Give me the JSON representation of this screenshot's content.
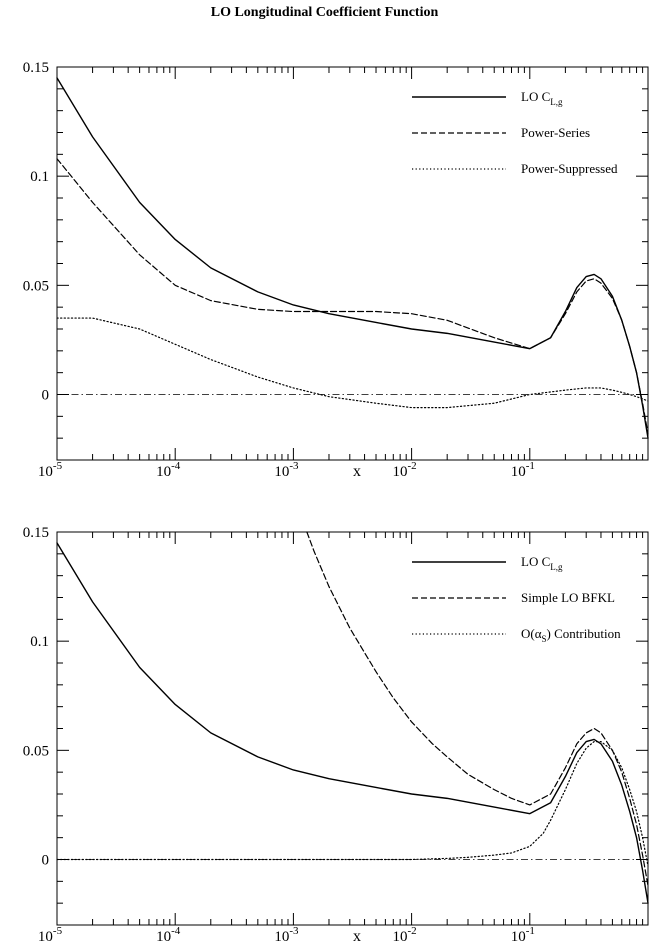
{
  "page": {
    "title": "LO Longitudinal Coefficient Function"
  },
  "chart_data": [
    {
      "type": "line",
      "title": "",
      "xlabel": "x",
      "ylabel": "",
      "x_scale": "log",
      "xlim": [
        1e-05,
        1
      ],
      "ylim": [
        -0.03,
        0.15
      ],
      "x_ticks": [
        {
          "value": 1e-05,
          "base": "10",
          "exp": "-5"
        },
        {
          "value": 0.0001,
          "base": "10",
          "exp": "-4"
        },
        {
          "value": 0.001,
          "base": "10",
          "exp": "-3"
        },
        {
          "value": 0.01,
          "base": "10",
          "exp": "-2"
        },
        {
          "value": 0.1,
          "base": "10",
          "exp": "-1"
        }
      ],
      "y_ticks": [
        {
          "value": 0.15,
          "label": "0.15"
        },
        {
          "value": 0.1,
          "label": "0.1"
        },
        {
          "value": 0.05,
          "label": "0.05"
        },
        {
          "value": 0,
          "label": "0"
        }
      ],
      "legend_position": "top-right",
      "zero_line": {
        "y": 0,
        "style": "dashdot"
      },
      "series": [
        {
          "name": "LO C_L,g",
          "legend_text": "LO C",
          "legend_sub": "L,g",
          "style": "solid",
          "x": [
            1e-05,
            2e-05,
            5e-05,
            0.0001,
            0.0002,
            0.0005,
            0.001,
            0.002,
            0.005,
            0.01,
            0.02,
            0.05,
            0.1,
            0.15,
            0.2,
            0.25,
            0.3,
            0.35,
            0.4,
            0.5,
            0.6,
            0.7,
            0.8,
            0.9,
            1.0
          ],
          "y": [
            0.145,
            0.118,
            0.088,
            0.071,
            0.058,
            0.047,
            0.041,
            0.037,
            0.033,
            0.03,
            0.028,
            0.024,
            0.021,
            0.026,
            0.038,
            0.049,
            0.054,
            0.055,
            0.053,
            0.045,
            0.034,
            0.022,
            0.01,
            -0.005,
            -0.02
          ]
        },
        {
          "name": "Power-Series",
          "legend_text": "Power-Series",
          "style": "dashed",
          "x": [
            1e-05,
            2e-05,
            5e-05,
            0.0001,
            0.0002,
            0.0005,
            0.001,
            0.002,
            0.005,
            0.01,
            0.02,
            0.05,
            0.1,
            0.15,
            0.2,
            0.25,
            0.3,
            0.35,
            0.4,
            0.5,
            0.6,
            0.7,
            0.8,
            0.9,
            1.0
          ],
          "y": [
            0.108,
            0.088,
            0.064,
            0.05,
            0.043,
            0.039,
            0.038,
            0.038,
            0.038,
            0.037,
            0.034,
            0.026,
            0.021,
            0.026,
            0.037,
            0.047,
            0.052,
            0.053,
            0.051,
            0.044,
            0.034,
            0.022,
            0.01,
            -0.004,
            -0.018
          ]
        },
        {
          "name": "Power-Suppressed",
          "legend_text": "Power-Suppressed",
          "style": "dotted",
          "x": [
            1e-05,
            2e-05,
            5e-05,
            0.0001,
            0.0002,
            0.0005,
            0.001,
            0.002,
            0.005,
            0.01,
            0.02,
            0.05,
            0.1,
            0.2,
            0.3,
            0.4,
            0.5,
            0.6,
            0.7,
            0.8,
            0.9,
            1.0
          ],
          "y": [
            0.035,
            0.035,
            0.03,
            0.023,
            0.016,
            0.008,
            0.003,
            -0.001,
            -0.004,
            -0.006,
            -0.006,
            -0.004,
            0.0,
            0.002,
            0.003,
            0.003,
            0.002,
            0.001,
            0.0,
            -0.001,
            -0.002,
            -0.003
          ]
        }
      ]
    },
    {
      "type": "line",
      "title": "",
      "xlabel": "x",
      "ylabel": "",
      "x_scale": "log",
      "xlim": [
        1e-05,
        1
      ],
      "ylim": [
        -0.03,
        0.15
      ],
      "x_ticks": [
        {
          "value": 1e-05,
          "base": "10",
          "exp": "-5"
        },
        {
          "value": 0.0001,
          "base": "10",
          "exp": "-4"
        },
        {
          "value": 0.001,
          "base": "10",
          "exp": "-3"
        },
        {
          "value": 0.01,
          "base": "10",
          "exp": "-2"
        },
        {
          "value": 0.1,
          "base": "10",
          "exp": "-1"
        }
      ],
      "y_ticks": [
        {
          "value": 0.15,
          "label": "0.15"
        },
        {
          "value": 0.1,
          "label": "0.1"
        },
        {
          "value": 0.05,
          "label": "0.05"
        },
        {
          "value": 0,
          "label": "0"
        }
      ],
      "legend_position": "top-right",
      "zero_line": {
        "y": 0,
        "style": "dashdot"
      },
      "series": [
        {
          "name": "LO C_L,g",
          "legend_text": "LO C",
          "legend_sub": "L,g",
          "style": "solid",
          "x": [
            1e-05,
            2e-05,
            5e-05,
            0.0001,
            0.0002,
            0.0005,
            0.001,
            0.002,
            0.005,
            0.01,
            0.02,
            0.05,
            0.1,
            0.15,
            0.2,
            0.25,
            0.3,
            0.35,
            0.4,
            0.5,
            0.6,
            0.7,
            0.8,
            0.9,
            1.0
          ],
          "y": [
            0.145,
            0.118,
            0.088,
            0.071,
            0.058,
            0.047,
            0.041,
            0.037,
            0.033,
            0.03,
            0.028,
            0.024,
            0.021,
            0.026,
            0.038,
            0.049,
            0.054,
            0.055,
            0.053,
            0.045,
            0.034,
            0.022,
            0.01,
            -0.005,
            -0.02
          ]
        },
        {
          "name": "Simple LO BFKL",
          "legend_text": "Simple LO BFKL",
          "style": "dashed",
          "x": [
            0.0013,
            0.0015,
            0.002,
            0.003,
            0.005,
            0.007,
            0.01,
            0.015,
            0.02,
            0.03,
            0.05,
            0.07,
            0.1,
            0.15,
            0.2,
            0.25,
            0.3,
            0.35,
            0.4,
            0.5,
            0.6,
            0.7,
            0.8,
            0.9,
            1.0
          ],
          "y": [
            0.15,
            0.141,
            0.125,
            0.106,
            0.086,
            0.074,
            0.063,
            0.053,
            0.047,
            0.039,
            0.032,
            0.028,
            0.025,
            0.03,
            0.042,
            0.053,
            0.058,
            0.06,
            0.058,
            0.05,
            0.04,
            0.028,
            0.016,
            0.002,
            -0.012
          ]
        },
        {
          "name": "O(alpha_S) Contribution",
          "legend_text": "O(α",
          "legend_sub": "S",
          "legend_tail": ") Contribution",
          "style": "dotted",
          "x": [
            1e-05,
            0.001,
            0.005,
            0.01,
            0.02,
            0.03,
            0.05,
            0.07,
            0.1,
            0.13,
            0.15,
            0.2,
            0.25,
            0.3,
            0.35,
            0.4,
            0.5,
            0.6,
            0.7,
            0.8,
            0.9,
            1.0
          ],
          "y": [
            0.0,
            0.0,
            0.0,
            0.0,
            0.0005,
            0.001,
            0.002,
            0.003,
            0.006,
            0.012,
            0.018,
            0.032,
            0.044,
            0.051,
            0.054,
            0.054,
            0.05,
            0.042,
            0.032,
            0.022,
            0.01,
            -0.003
          ]
        }
      ]
    }
  ]
}
